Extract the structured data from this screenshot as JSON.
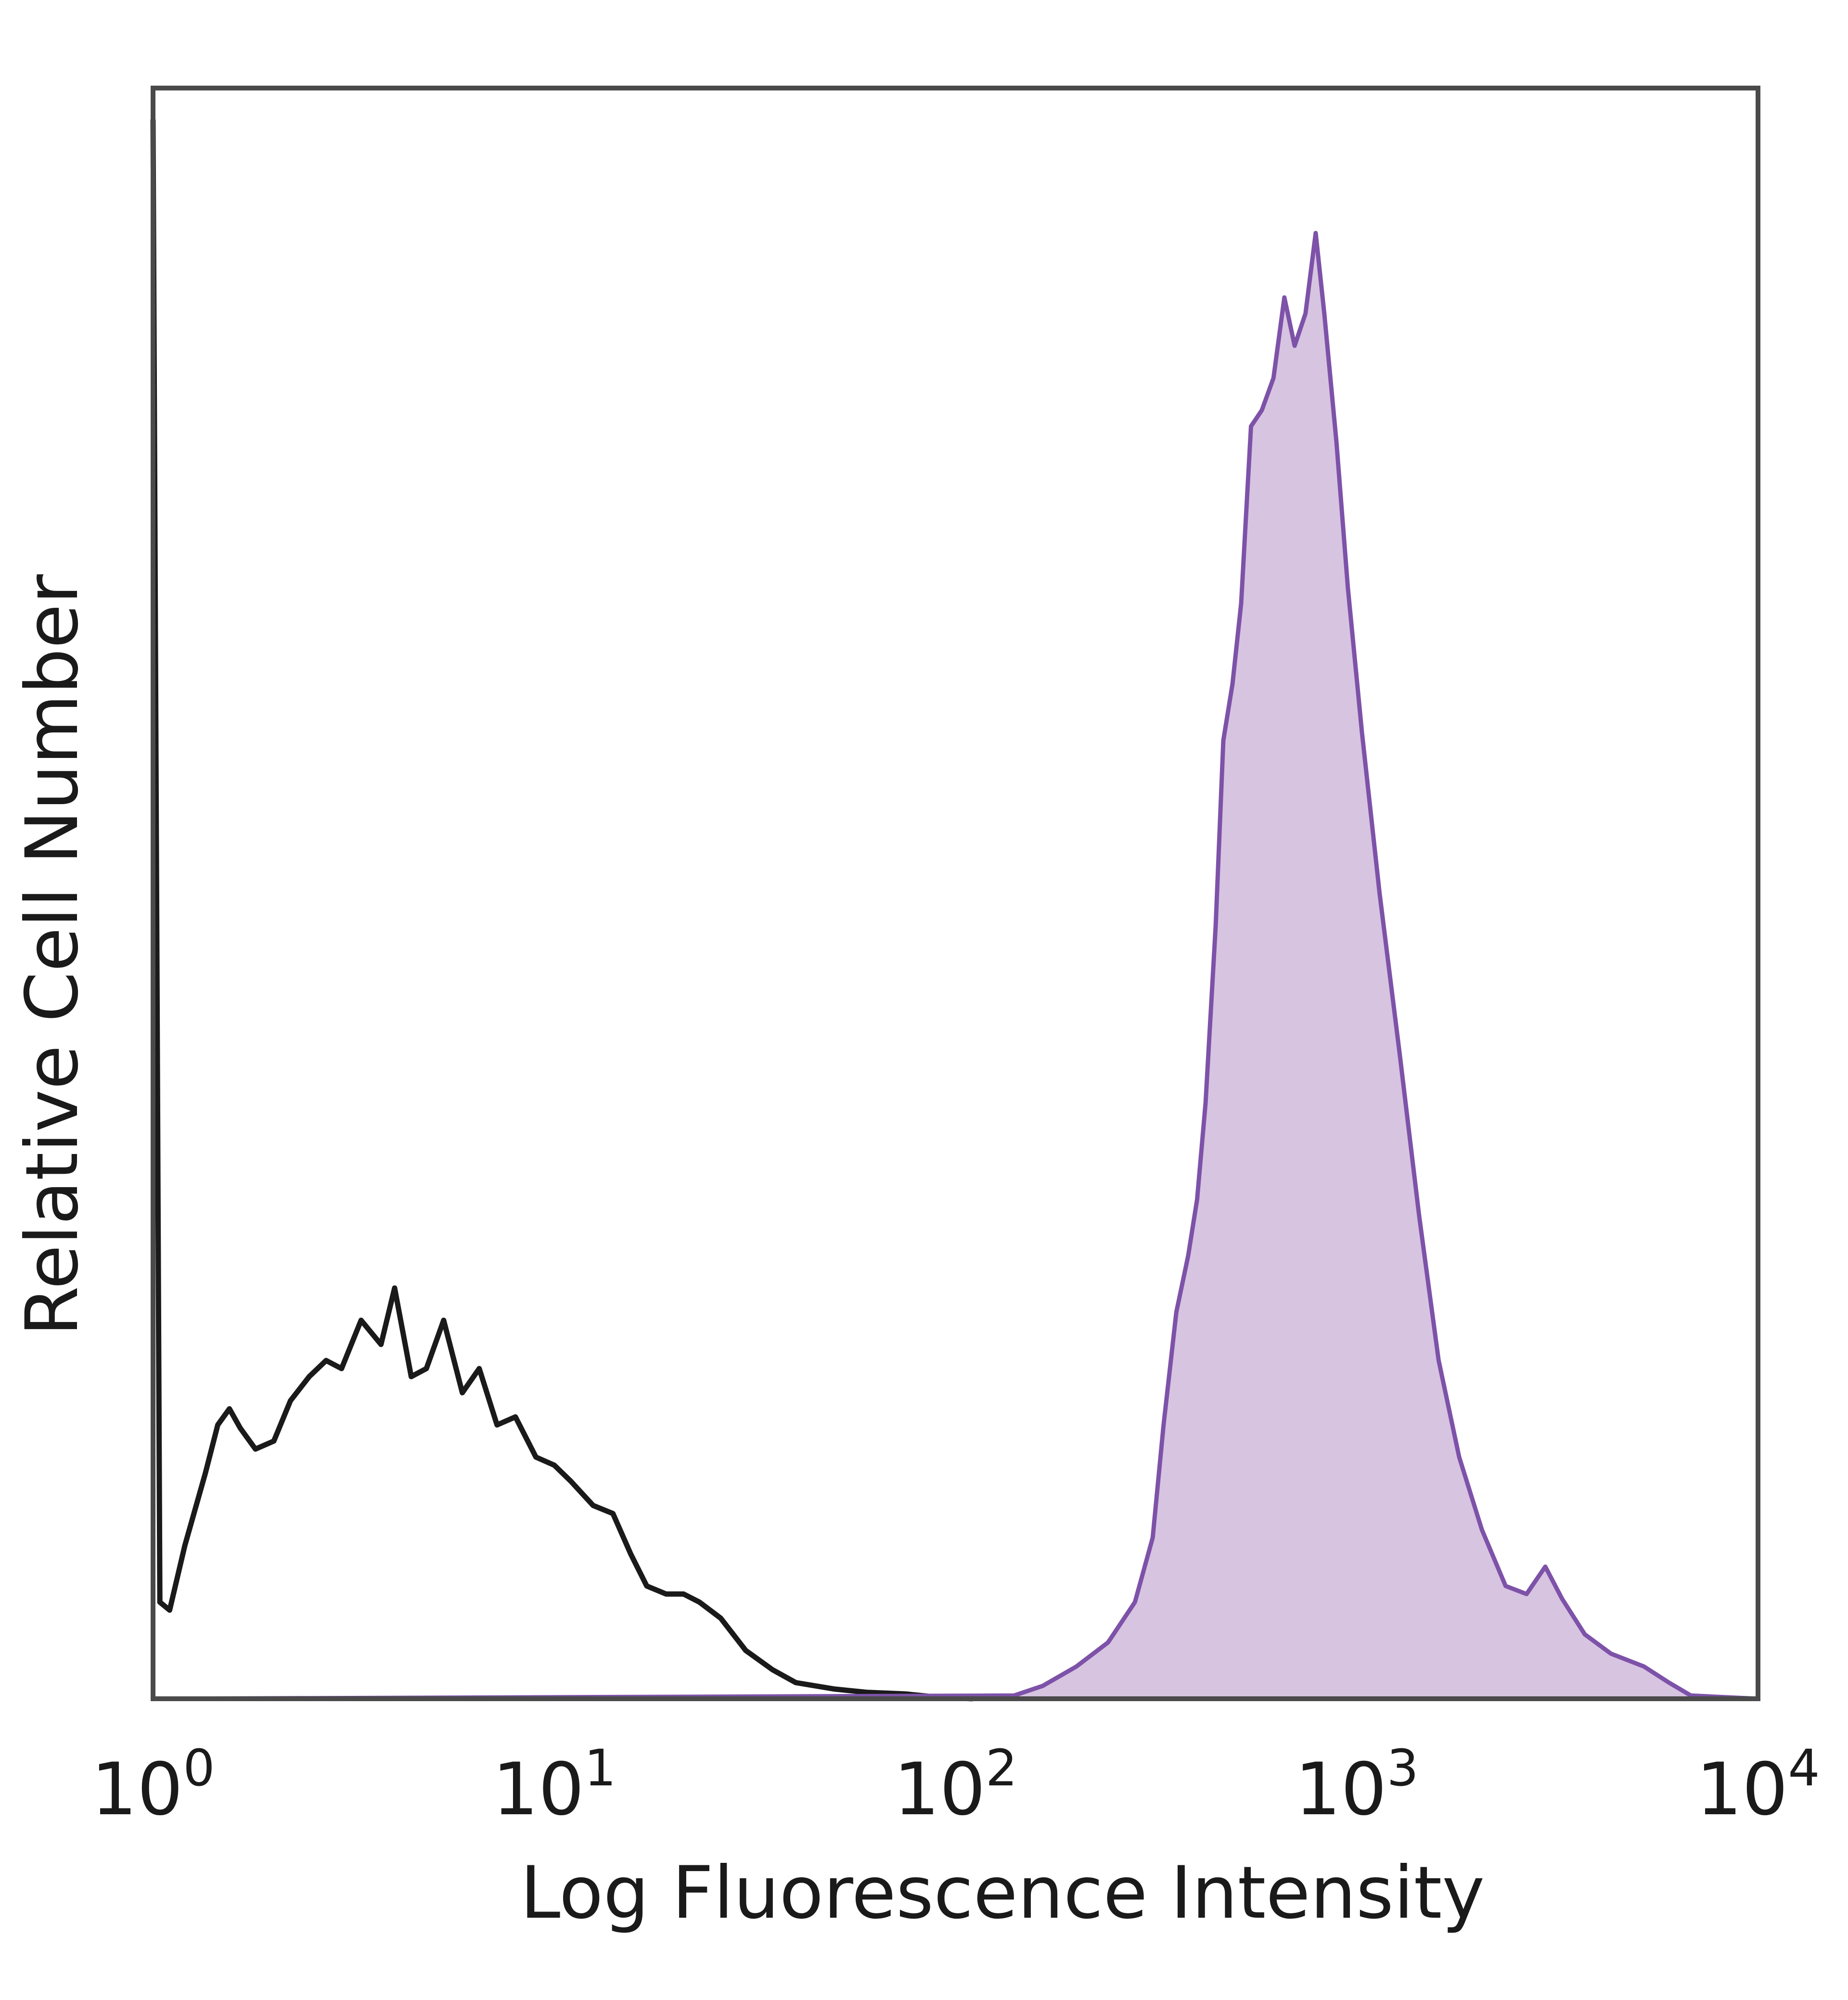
{
  "chart_data": {
    "type": "area",
    "xlabel": "Log Fluorescence Intensity",
    "ylabel": "Relative Cell Number",
    "xscale": "log",
    "xlim": [
      1,
      10000
    ],
    "ylim": [
      0,
      1
    ],
    "grid": false,
    "x_ticks": [
      {
        "base": "10",
        "exp": "0",
        "value": 1
      },
      {
        "base": "10",
        "exp": "1",
        "value": 10
      },
      {
        "base": "10",
        "exp": "2",
        "value": 100
      },
      {
        "base": "10",
        "exp": "3",
        "value": 1000
      },
      {
        "base": "10",
        "exp": "4",
        "value": 10000
      }
    ],
    "series": [
      {
        "style": "outline",
        "color": "#1a1a1a",
        "points": [
          [
            1.0,
            0.98
          ],
          [
            1.04,
            0.06
          ],
          [
            1.1,
            0.055
          ],
          [
            1.2,
            0.095
          ],
          [
            1.35,
            0.14
          ],
          [
            1.45,
            0.17
          ],
          [
            1.55,
            0.18
          ],
          [
            1.65,
            0.168
          ],
          [
            1.8,
            0.155
          ],
          [
            2.0,
            0.16
          ],
          [
            2.2,
            0.185
          ],
          [
            2.45,
            0.2
          ],
          [
            2.7,
            0.21
          ],
          [
            2.95,
            0.205
          ],
          [
            3.3,
            0.235
          ],
          [
            3.7,
            0.22
          ],
          [
            4.0,
            0.255
          ],
          [
            4.4,
            0.2
          ],
          [
            4.8,
            0.205
          ],
          [
            5.3,
            0.235
          ],
          [
            5.9,
            0.19
          ],
          [
            6.5,
            0.205
          ],
          [
            7.2,
            0.17
          ],
          [
            8.0,
            0.175
          ],
          [
            9.0,
            0.15
          ],
          [
            10.0,
            0.145
          ],
          [
            11.0,
            0.135
          ],
          [
            12.5,
            0.12
          ],
          [
            14.0,
            0.115
          ],
          [
            15.5,
            0.09
          ],
          [
            17.0,
            0.07
          ],
          [
            19.0,
            0.065
          ],
          [
            21.0,
            0.065
          ],
          [
            23.0,
            0.06
          ],
          [
            26.0,
            0.05
          ],
          [
            30.0,
            0.03
          ],
          [
            35.0,
            0.018
          ],
          [
            40.0,
            0.01
          ],
          [
            50.0,
            0.006
          ],
          [
            60.0,
            0.004
          ],
          [
            75.0,
            0.003
          ],
          [
            90.0,
            0.001
          ],
          [
            110.0,
            0.0
          ]
        ]
      },
      {
        "style": "filled",
        "color": "#7d52a8",
        "fill": "#d7c4e1",
        "points": [
          [
            1.0,
            0.0
          ],
          [
            140.0,
            0.002
          ],
          [
            165.0,
            0.008
          ],
          [
            200.0,
            0.02
          ],
          [
            240.0,
            0.035
          ],
          [
            280.0,
            0.06
          ],
          [
            310.0,
            0.1
          ],
          [
            330.0,
            0.17
          ],
          [
            355.0,
            0.24
          ],
          [
            380.0,
            0.275
          ],
          [
            400.0,
            0.31
          ],
          [
            420.0,
            0.37
          ],
          [
            445.0,
            0.48
          ],
          [
            465.0,
            0.595
          ],
          [
            490.0,
            0.63
          ],
          [
            515.0,
            0.68
          ],
          [
            545.0,
            0.79
          ],
          [
            580.0,
            0.8
          ],
          [
            620.0,
            0.82
          ],
          [
            660.0,
            0.87
          ],
          [
            700.0,
            0.84
          ],
          [
            745.0,
            0.86
          ],
          [
            790.0,
            0.91
          ],
          [
            830.0,
            0.86
          ],
          [
            890.0,
            0.78
          ],
          [
            950.0,
            0.69
          ],
          [
            1030.0,
            0.6
          ],
          [
            1140.0,
            0.5
          ],
          [
            1280.0,
            0.4
          ],
          [
            1430.0,
            0.3
          ],
          [
            1600.0,
            0.21
          ],
          [
            1800.0,
            0.15
          ],
          [
            2050.0,
            0.105
          ],
          [
            2350.0,
            0.07
          ],
          [
            2650.0,
            0.065
          ],
          [
            2950.0,
            0.082
          ],
          [
            3250.0,
            0.062
          ],
          [
            3700.0,
            0.04
          ],
          [
            4300.0,
            0.028
          ],
          [
            5200.0,
            0.02
          ],
          [
            6000.0,
            0.01
          ],
          [
            6800.0,
            0.002
          ],
          [
            10000.0,
            0.0
          ]
        ]
      }
    ]
  }
}
